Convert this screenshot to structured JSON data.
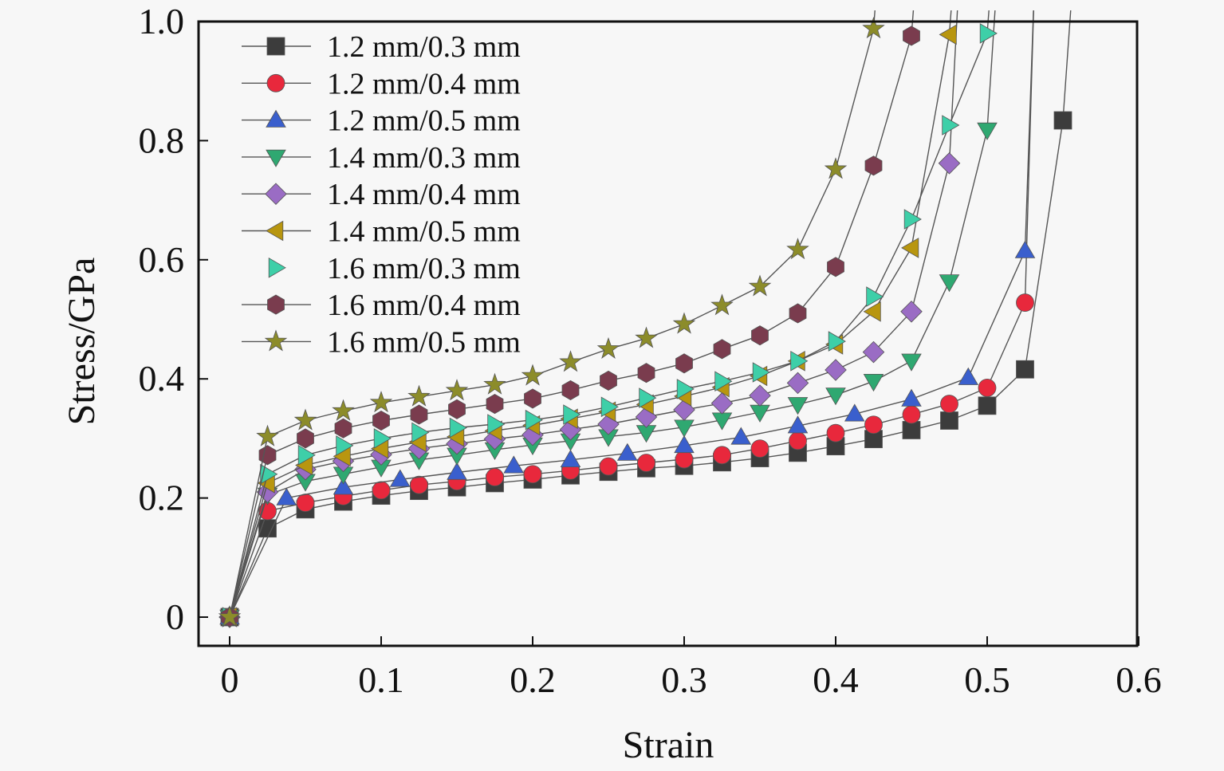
{
  "chart_data": {
    "type": "line",
    "title": "",
    "xlabel": "Strain",
    "ylabel": "Stress/GPa",
    "xlim": [
      -0.02,
      0.6
    ],
    "ylim": [
      -0.05,
      1.0
    ],
    "xticks": [
      0,
      0.1,
      0.2,
      0.3,
      0.4,
      0.5,
      0.6
    ],
    "xtick_labels": [
      "0",
      "0.1",
      "0.2",
      "0.3",
      "0.4",
      "0.5",
      "0.6"
    ],
    "yticks": [
      0,
      0.2,
      0.4,
      0.6,
      0.8,
      1.0
    ],
    "ytick_labels": [
      "0",
      "0.2",
      "0.4",
      "0.6",
      "0.8",
      "1.0"
    ],
    "grid": false,
    "legend_position": "top-left",
    "series": [
      {
        "name": "1.2 mm/0.3 mm",
        "marker": "square",
        "color": "#3c3c3c",
        "x": [
          0,
          0.025,
          0.05,
          0.075,
          0.1,
          0.125,
          0.15,
          0.175,
          0.2,
          0.225,
          0.25,
          0.275,
          0.3,
          0.325,
          0.35,
          0.375,
          0.4,
          0.425,
          0.45,
          0.475,
          0.5,
          0.525,
          0.55
        ],
        "y": [
          0,
          0.149,
          0.181,
          0.194,
          0.204,
          0.212,
          0.218,
          0.225,
          0.231,
          0.238,
          0.244,
          0.25,
          0.254,
          0.26,
          0.267,
          0.276,
          0.287,
          0.299,
          0.314,
          0.33,
          0.355,
          0.416,
          0.834
        ]
      },
      {
        "name": "1.2 mm/0.4 mm",
        "marker": "circle",
        "color": "#e8283c",
        "x": [
          0,
          0.025,
          0.05,
          0.075,
          0.1,
          0.125,
          0.15,
          0.175,
          0.2,
          0.225,
          0.25,
          0.275,
          0.3,
          0.325,
          0.35,
          0.375,
          0.4,
          0.425,
          0.45,
          0.475,
          0.5,
          0.525
        ],
        "y": [
          0,
          0.178,
          0.192,
          0.203,
          0.213,
          0.222,
          0.228,
          0.235,
          0.24,
          0.246,
          0.253,
          0.259,
          0.265,
          0.272,
          0.283,
          0.296,
          0.309,
          0.323,
          0.34,
          0.358,
          0.385,
          0.528
        ]
      },
      {
        "name": "1.2 mm/0.5 mm",
        "marker": "triangle-up",
        "color": "#3a5fcd",
        "x": [
          0,
          0.0375,
          0.075,
          0.1125,
          0.15,
          0.1875,
          0.225,
          0.2625,
          0.3,
          0.3375,
          0.375,
          0.4125,
          0.45,
          0.4875,
          0.525
        ],
        "y": [
          0,
          0.2,
          0.218,
          0.231,
          0.243,
          0.254,
          0.264,
          0.275,
          0.288,
          0.302,
          0.321,
          0.341,
          0.366,
          0.402,
          0.615
        ]
      },
      {
        "name": "1.4 mm/0.3 mm",
        "marker": "triangle-down",
        "color": "#2fa871",
        "x": [
          0,
          0.025,
          0.05,
          0.075,
          0.1,
          0.125,
          0.15,
          0.175,
          0.2,
          0.225,
          0.25,
          0.275,
          0.3,
          0.325,
          0.35,
          0.375,
          0.4,
          0.425,
          0.45,
          0.475,
          0.5
        ],
        "y": [
          0,
          0.205,
          0.228,
          0.24,
          0.252,
          0.264,
          0.272,
          0.281,
          0.289,
          0.296,
          0.303,
          0.31,
          0.319,
          0.331,
          0.344,
          0.357,
          0.373,
          0.396,
          0.43,
          0.563,
          0.818
        ]
      },
      {
        "name": "1.4 mm/0.4 mm",
        "marker": "diamond",
        "color": "#9a6cc4",
        "x": [
          0,
          0.025,
          0.05,
          0.075,
          0.1,
          0.125,
          0.15,
          0.175,
          0.2,
          0.225,
          0.25,
          0.275,
          0.3,
          0.325,
          0.35,
          0.375,
          0.4,
          0.425,
          0.45,
          0.475
        ],
        "y": [
          0,
          0.21,
          0.248,
          0.262,
          0.273,
          0.283,
          0.291,
          0.299,
          0.306,
          0.315,
          0.324,
          0.336,
          0.348,
          0.359,
          0.372,
          0.393,
          0.415,
          0.445,
          0.513,
          0.762
        ]
      },
      {
        "name": "1.4 mm/0.5 mm",
        "marker": "triangle-left",
        "color": "#b8960f",
        "x": [
          0,
          0.025,
          0.05,
          0.075,
          0.1,
          0.125,
          0.15,
          0.175,
          0.2,
          0.225,
          0.25,
          0.275,
          0.3,
          0.325,
          0.35,
          0.375,
          0.4,
          0.425,
          0.45,
          0.475
        ],
        "y": [
          0,
          0.225,
          0.255,
          0.27,
          0.283,
          0.294,
          0.303,
          0.313,
          0.322,
          0.333,
          0.345,
          0.357,
          0.371,
          0.386,
          0.405,
          0.43,
          0.458,
          0.513,
          0.62,
          0.978
        ]
      },
      {
        "name": "1.6 mm/0.3 mm",
        "marker": "triangle-right",
        "color": "#3ecfa8",
        "x": [
          0,
          0.025,
          0.05,
          0.075,
          0.1,
          0.125,
          0.15,
          0.175,
          0.2,
          0.225,
          0.25,
          0.275,
          0.3,
          0.325,
          0.35,
          0.375,
          0.4,
          0.425,
          0.45,
          0.475,
          0.5
        ],
        "y": [
          0,
          0.24,
          0.272,
          0.288,
          0.3,
          0.31,
          0.318,
          0.324,
          0.331,
          0.34,
          0.353,
          0.368,
          0.383,
          0.396,
          0.411,
          0.43,
          0.463,
          0.538,
          0.668,
          0.826,
          0.98
        ]
      },
      {
        "name": "1.6 mm/0.4 mm",
        "marker": "hexagon",
        "color": "#7a3c4e",
        "x": [
          0,
          0.025,
          0.05,
          0.075,
          0.1,
          0.125,
          0.15,
          0.175,
          0.2,
          0.225,
          0.25,
          0.275,
          0.3,
          0.325,
          0.35,
          0.375,
          0.4,
          0.425,
          0.45
        ],
        "y": [
          0,
          0.272,
          0.3,
          0.317,
          0.33,
          0.34,
          0.349,
          0.358,
          0.367,
          0.381,
          0.397,
          0.41,
          0.426,
          0.45,
          0.473,
          0.51,
          0.588,
          0.758,
          0.976
        ]
      },
      {
        "name": "1.6 mm/0.5 mm",
        "marker": "star",
        "color": "#8c8c2a",
        "x": [
          0,
          0.025,
          0.05,
          0.075,
          0.1,
          0.125,
          0.15,
          0.175,
          0.2,
          0.225,
          0.25,
          0.275,
          0.3,
          0.325,
          0.35,
          0.375,
          0.4,
          0.425
        ],
        "y": [
          0,
          0.303,
          0.33,
          0.346,
          0.36,
          0.37,
          0.38,
          0.39,
          0.405,
          0.428,
          0.45,
          0.468,
          0.492,
          0.523,
          0.555,
          0.617,
          0.752,
          0.988
        ]
      }
    ]
  }
}
